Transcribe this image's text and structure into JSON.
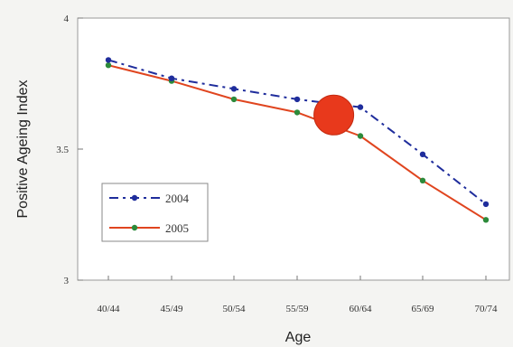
{
  "chart_data": {
    "type": "line",
    "xlabel": "Age",
    "ylabel": "Positive Ageing Index",
    "categories": [
      "40/44",
      "45/49",
      "50/54",
      "55/59",
      "60/64",
      "65/69",
      "70/74"
    ],
    "ylim": [
      3,
      4
    ],
    "yticks": [
      "3",
      "3.5",
      "4"
    ],
    "grid": false,
    "legend_position": "bottom-left",
    "series": [
      {
        "name": "2004",
        "values": [
          3.84,
          3.77,
          3.73,
          3.69,
          3.66,
          3.48,
          3.29
        ],
        "color": "#1f2d9c",
        "style": "dash-dot"
      },
      {
        "name": "2005",
        "values": [
          3.82,
          3.76,
          3.69,
          3.64,
          3.55,
          3.38,
          3.23
        ],
        "color": "#e0451f",
        "style": "solid",
        "marker_color": "#2c8a3a"
      }
    ],
    "highlight": {
      "x_between": [
        "55/59",
        "60/64"
      ],
      "y": 3.63,
      "color": "#e8391c"
    }
  }
}
